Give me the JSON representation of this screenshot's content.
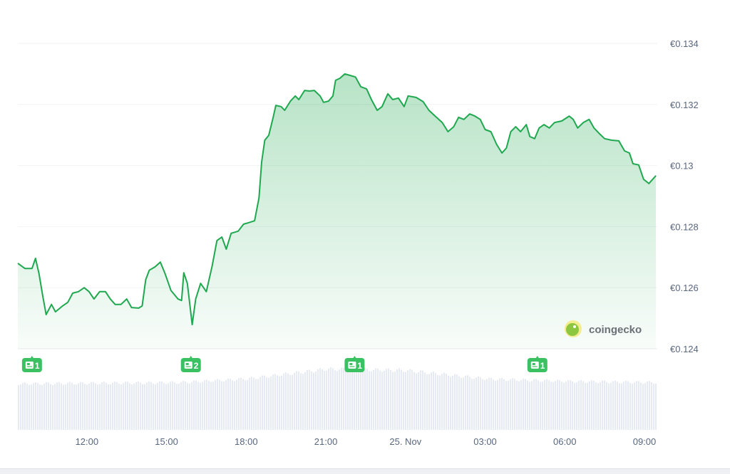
{
  "chart_data": {
    "type": "area",
    "currency_symbol": "€",
    "colors": {
      "line": "#1fa84f",
      "fill": "#1fa84f",
      "volume": "#e6eaf2",
      "news": "#3cc162"
    },
    "ylim": [
      0.124,
      0.134
    ],
    "y_ticks": [
      "€0.134",
      "€0.132",
      "€0.13",
      "€0.128",
      "€0.126",
      "€0.124"
    ],
    "y_tick_values": [
      0.134,
      0.132,
      0.13,
      0.128,
      0.126,
      0.124
    ],
    "xlim": [
      "24 Nov 09:24",
      "25 Nov 09:29"
    ],
    "x_ticks": [
      {
        "label": "12:00",
        "t": "24 Nov 12:00"
      },
      {
        "label": "15:00",
        "t": "24 Nov 15:00"
      },
      {
        "label": "18:00",
        "t": "24 Nov 18:00"
      },
      {
        "label": "21:00",
        "t": "24 Nov 21:00"
      },
      {
        "label": "25. Nov",
        "t": "25 Nov 00:00"
      },
      {
        "label": "03:00",
        "t": "25 Nov 03:00"
      },
      {
        "label": "06:00",
        "t": "25 Nov 06:00"
      },
      {
        "label": "09:00",
        "t": "25 Nov 09:00"
      }
    ],
    "grid": true,
    "series": [
      {
        "points": [
          [
            "24 Nov 09:24",
            0.1268
          ],
          [
            "24 Nov 09:40",
            0.12663
          ],
          [
            "24 Nov 09:56",
            0.12663
          ],
          [
            "24 Nov 10:04",
            0.12696
          ],
          [
            "24 Nov 10:12",
            0.12645
          ],
          [
            "24 Nov 10:20",
            0.12575
          ],
          [
            "24 Nov 10:28",
            0.12512
          ],
          [
            "24 Nov 10:40",
            0.12545
          ],
          [
            "24 Nov 10:49",
            0.12521
          ],
          [
            "24 Nov 11:05",
            0.1254
          ],
          [
            "24 Nov 11:17",
            0.12552
          ],
          [
            "24 Nov 11:28",
            0.12582
          ],
          [
            "24 Nov 11:41",
            0.12587
          ],
          [
            "24 Nov 11:54",
            0.126
          ],
          [
            "24 Nov 12:05",
            0.12587
          ],
          [
            "24 Nov 12:16",
            0.12563
          ],
          [
            "24 Nov 12:29",
            0.12587
          ],
          [
            "24 Nov 12:42",
            0.12587
          ],
          [
            "24 Nov 12:53",
            0.12563
          ],
          [
            "24 Nov 13:04",
            0.12545
          ],
          [
            "24 Nov 13:17",
            0.12545
          ],
          [
            "24 Nov 13:30",
            0.12563
          ],
          [
            "24 Nov 13:41",
            0.12535
          ],
          [
            "24 Nov 13:57",
            0.12533
          ],
          [
            "24 Nov 14:05",
            0.1254
          ],
          [
            "24 Nov 14:13",
            0.12626
          ],
          [
            "24 Nov 14:21",
            0.12657
          ],
          [
            "24 Nov 14:34",
            0.12668
          ],
          [
            "24 Nov 14:46",
            0.12684
          ],
          [
            "24 Nov 14:57",
            0.12645
          ],
          [
            "24 Nov 15:10",
            0.12591
          ],
          [
            "24 Nov 15:26",
            0.12563
          ],
          [
            "24 Nov 15:34",
            0.12558
          ],
          [
            "24 Nov 15:39",
            0.12649
          ],
          [
            "24 Nov 15:47",
            0.12614
          ],
          [
            "24 Nov 15:58",
            0.12479
          ],
          [
            "24 Nov 16:06",
            0.12563
          ],
          [
            "24 Nov 16:17",
            0.12614
          ],
          [
            "24 Nov 16:30",
            0.12587
          ],
          [
            "24 Nov 16:43",
            0.1267
          ],
          [
            "24 Nov 16:54",
            0.12754
          ],
          [
            "24 Nov 17:05",
            0.12766
          ],
          [
            "24 Nov 17:15",
            0.12726
          ],
          [
            "24 Nov 17:26",
            0.12778
          ],
          [
            "24 Nov 17:42",
            0.12785
          ],
          [
            "24 Nov 17:54",
            0.12808
          ],
          [
            "24 Nov 18:06",
            0.12813
          ],
          [
            "24 Nov 18:19",
            0.12819
          ],
          [
            "24 Nov 18:29",
            0.12894
          ],
          [
            "24 Nov 18:35",
            0.13011
          ],
          [
            "24 Nov 18:42",
            0.13083
          ],
          [
            "24 Nov 18:51",
            0.13099
          ],
          [
            "24 Nov 19:01",
            0.13158
          ],
          [
            "24 Nov 19:07",
            0.13197
          ],
          [
            "24 Nov 19:19",
            0.13193
          ],
          [
            "24 Nov 19:27",
            0.13181
          ],
          [
            "24 Nov 19:40",
            0.13211
          ],
          [
            "24 Nov 19:51",
            0.13228
          ],
          [
            "24 Nov 19:59",
            0.13216
          ],
          [
            "24 Nov 20:12",
            0.13246
          ],
          [
            "24 Nov 20:23",
            0.13244
          ],
          [
            "24 Nov 20:34",
            0.13246
          ],
          [
            "24 Nov 20:47",
            0.13228
          ],
          [
            "24 Nov 20:55",
            0.13207
          ],
          [
            "24 Nov 21:06",
            0.13211
          ],
          [
            "24 Nov 21:16",
            0.13228
          ],
          [
            "24 Nov 21:22",
            0.13279
          ],
          [
            "24 Nov 21:32",
            0.13286
          ],
          [
            "24 Nov 21:43",
            0.133
          ],
          [
            "24 Nov 21:55",
            0.13295
          ],
          [
            "24 Nov 22:07",
            0.1329
          ],
          [
            "24 Nov 22:19",
            0.13258
          ],
          [
            "24 Nov 22:32",
            0.13251
          ],
          [
            "24 Nov 22:43",
            0.13216
          ],
          [
            "24 Nov 22:56",
            0.13181
          ],
          [
            "24 Nov 23:07",
            0.13193
          ],
          [
            "24 Nov 23:20",
            0.13235
          ],
          [
            "24 Nov 23:31",
            0.13216
          ],
          [
            "24 Nov 23:44",
            0.13221
          ],
          [
            "24 Nov 23:57",
            0.13193
          ],
          [
            "25 Nov 00:06",
            0.13228
          ],
          [
            "25 Nov 00:24",
            0.13223
          ],
          [
            "25 Nov 00:40",
            0.13209
          ],
          [
            "25 Nov 00:53",
            0.13181
          ],
          [
            "25 Nov 01:07",
            0.13162
          ],
          [
            "25 Nov 01:23",
            0.13141
          ],
          [
            "25 Nov 01:36",
            0.13111
          ],
          [
            "25 Nov 01:49",
            0.13127
          ],
          [
            "25 Nov 02:00",
            0.13158
          ],
          [
            "25 Nov 02:12",
            0.13151
          ],
          [
            "25 Nov 02:25",
            0.13169
          ],
          [
            "25 Nov 02:37",
            0.13162
          ],
          [
            "25 Nov 02:49",
            0.13151
          ],
          [
            "25 Nov 03:00",
            0.13118
          ],
          [
            "25 Nov 03:13",
            0.13111
          ],
          [
            "25 Nov 03:26",
            0.13069
          ],
          [
            "25 Nov 03:38",
            0.13041
          ],
          [
            "25 Nov 03:48",
            0.13057
          ],
          [
            "25 Nov 03:58",
            0.13111
          ],
          [
            "25 Nov 04:09",
            0.13127
          ],
          [
            "25 Nov 04:20",
            0.13111
          ],
          [
            "25 Nov 04:33",
            0.13134
          ],
          [
            "25 Nov 04:41",
            0.13095
          ],
          [
            "25 Nov 04:52",
            0.13088
          ],
          [
            "25 Nov 05:02",
            0.13123
          ],
          [
            "25 Nov 05:13",
            0.13134
          ],
          [
            "25 Nov 05:25",
            0.13123
          ],
          [
            "25 Nov 05:37",
            0.13141
          ],
          [
            "25 Nov 05:53",
            0.13146
          ],
          [
            "25 Nov 06:10",
            0.13162
          ],
          [
            "25 Nov 06:19",
            0.13151
          ],
          [
            "25 Nov 06:29",
            0.13123
          ],
          [
            "25 Nov 06:42",
            0.13141
          ],
          [
            "25 Nov 06:55",
            0.13151
          ],
          [
            "25 Nov 07:06",
            0.13123
          ],
          [
            "25 Nov 07:17",
            0.13106
          ],
          [
            "25 Nov 07:30",
            0.13088
          ],
          [
            "25 Nov 07:46",
            0.13083
          ],
          [
            "25 Nov 08:02",
            0.13081
          ],
          [
            "25 Nov 08:15",
            0.13048
          ],
          [
            "25 Nov 08:26",
            0.13041
          ],
          [
            "25 Nov 08:34",
            0.13006
          ],
          [
            "25 Nov 08:47",
            0.13002
          ],
          [
            "25 Nov 08:58",
            0.12955
          ],
          [
            "25 Nov 09:10",
            0.12941
          ],
          [
            "25 Nov 09:26",
            0.12967
          ]
        ]
      }
    ],
    "volume_relative": [
      [
        "24 Nov 09:24",
        0.76
      ],
      [
        "24 Nov 15:30",
        0.78
      ],
      [
        "24 Nov 18:00",
        0.84
      ],
      [
        "24 Nov 21:00",
        1.0
      ],
      [
        "25 Nov 00:00",
        0.98
      ],
      [
        "25 Nov 03:00",
        0.84
      ],
      [
        "25 Nov 06:00",
        0.8
      ],
      [
        "25 Nov 09:29",
        0.78
      ]
    ],
    "news_markers": [
      {
        "t": "24 Nov 09:56",
        "count": "1"
      },
      {
        "t": "24 Nov 15:55",
        "count": "2"
      },
      {
        "t": "24 Nov 22:05",
        "count": "1"
      },
      {
        "t": "25 Nov 04:58",
        "count": "1"
      }
    ],
    "watermark": "coingecko"
  }
}
